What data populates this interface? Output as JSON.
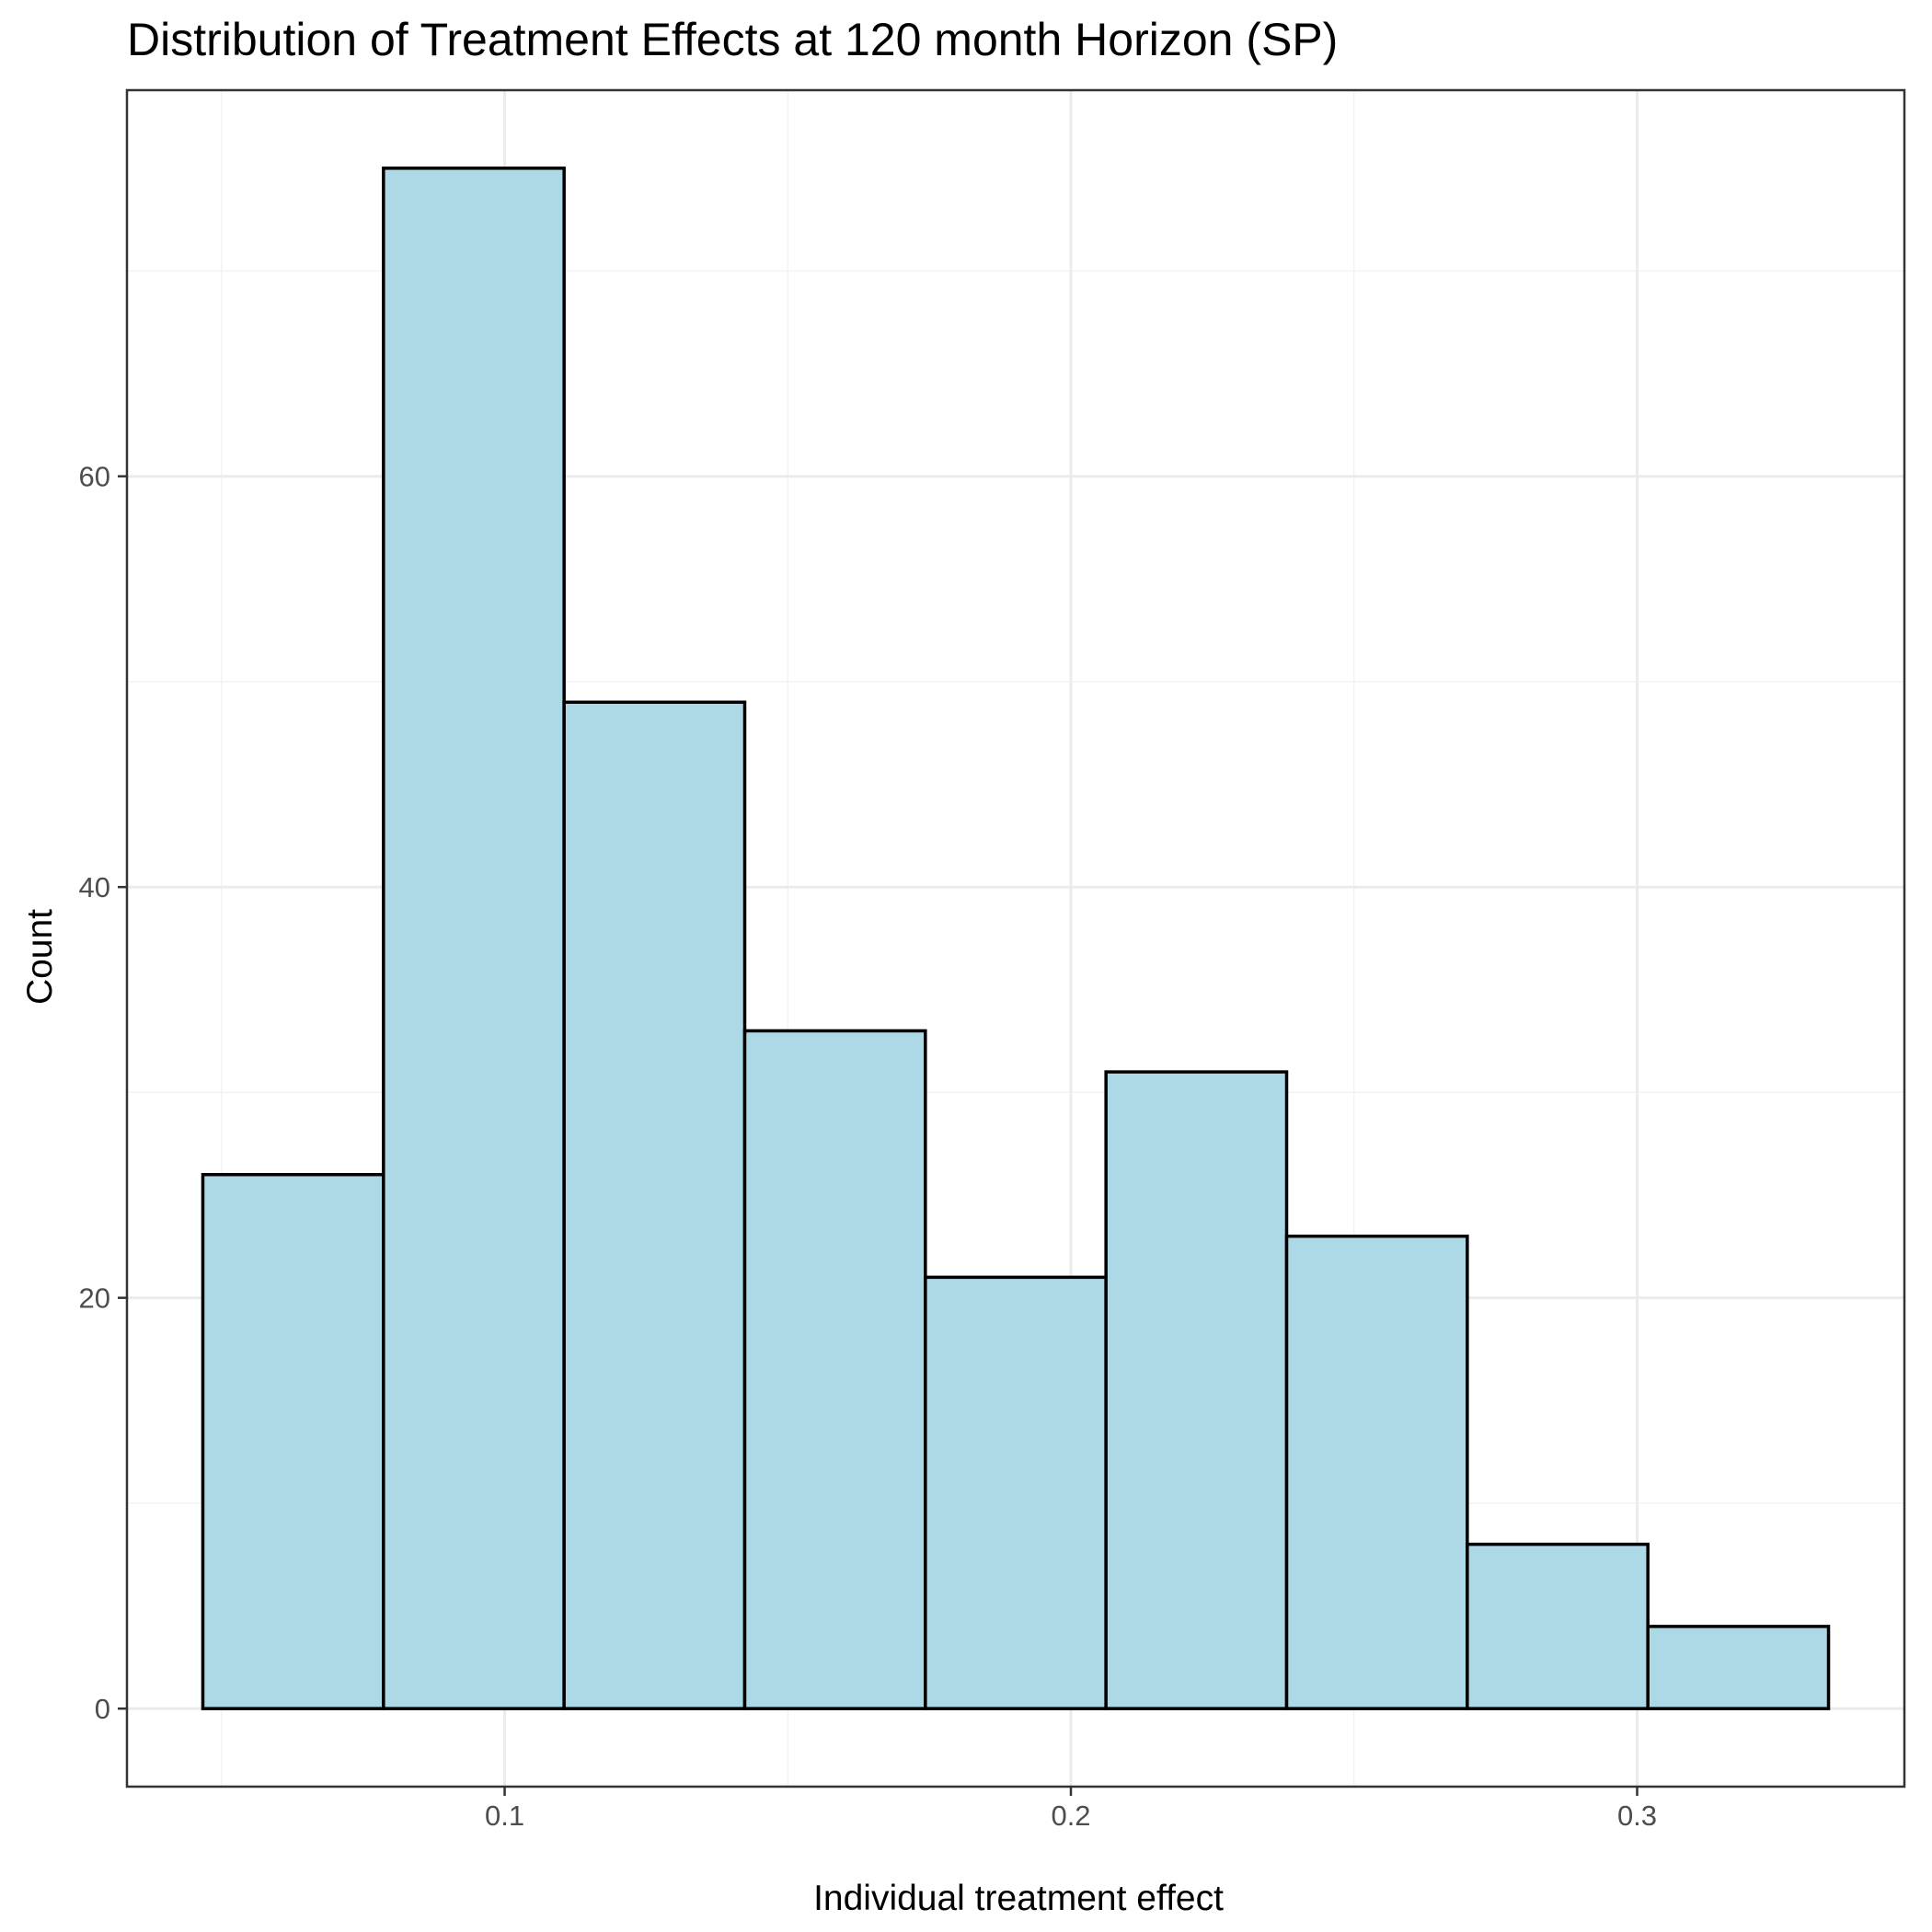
{
  "chart_data": {
    "type": "bar",
    "title": "Distribution of Treatment Effects at 120 month Horizon (SP)",
    "xlabel": "Individual treatment effect",
    "ylabel": "Count",
    "bin_edges": [
      0.0467,
      0.0786,
      0.1105,
      0.1424,
      0.1743,
      0.2062,
      0.2381,
      0.27,
      0.3019,
      0.3338
    ],
    "values": [
      26,
      75,
      49,
      33,
      21,
      31,
      23,
      8,
      4
    ],
    "x_ticks": [
      {
        "value": 0.1,
        "label": "0.1"
      },
      {
        "value": 0.2,
        "label": "0.2"
      },
      {
        "value": 0.3,
        "label": "0.3"
      }
    ],
    "y_ticks": [
      {
        "value": 0,
        "label": "0"
      },
      {
        "value": 20,
        "label": "20"
      },
      {
        "value": 40,
        "label": "40"
      },
      {
        "value": 60,
        "label": "60"
      }
    ],
    "x_minor_gridlines": [
      0.05,
      0.15,
      0.25
    ],
    "y_minor_gridlines": [
      10,
      30,
      50,
      70
    ],
    "xlim": [
      0.0333,
      0.3472
    ],
    "ylim": [
      -3.8,
      78.8
    ],
    "grid": true,
    "colors": {
      "bar_fill": "#ADD8E6",
      "bar_stroke": "#000000",
      "grid_major": "#EBEBEB",
      "grid_minor": "#F3F3F3",
      "panel_border": "#333333"
    }
  }
}
